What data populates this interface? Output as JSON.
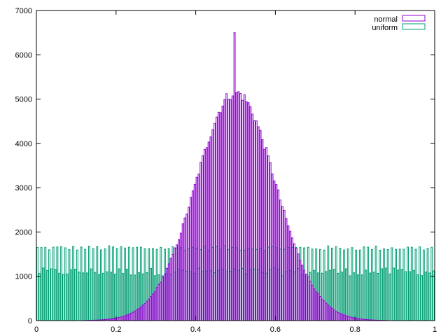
{
  "chart_data": {
    "type": "bar",
    "title": "",
    "xlabel": "",
    "ylabel": "",
    "xlim": [
      0,
      1
    ],
    "ylim": [
      0,
      7000
    ],
    "bin_width": 0.005,
    "x_ticks": [
      "0",
      "0.2",
      "0.4",
      "0.6",
      "0.8",
      "1"
    ],
    "y_ticks": [
      "0",
      "1000",
      "2000",
      "3000",
      "4000",
      "5000",
      "6000",
      "7000"
    ],
    "legend_placement": "top-right",
    "grid": false,
    "series": [
      {
        "name": "normal",
        "color": "#9400d3",
        "peak_x": 0.5,
        "peak_value": 6500,
        "center": 0.5,
        "sigma": 0.1,
        "amplitude": 5150,
        "support": [
          0.12,
          0.88
        ]
      },
      {
        "name": "uniform",
        "color": "#009e73",
        "mean_value": 1100,
        "high_value": 1700,
        "high_every_n_bins": 2
      }
    ]
  }
}
